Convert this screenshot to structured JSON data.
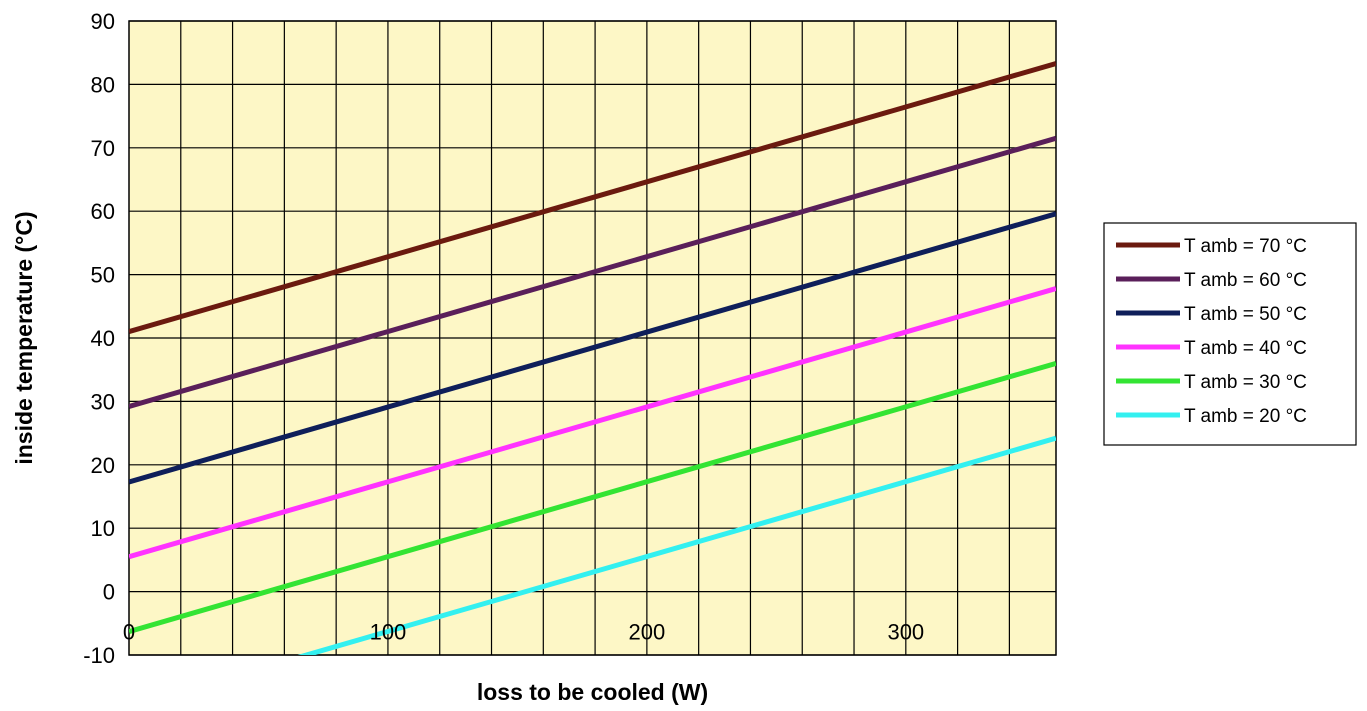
{
  "chart_data": {
    "type": "line",
    "title": "",
    "xlabel": "loss to be cooled (W)",
    "ylabel": "inside temperature (°C)",
    "xlim": [
      0,
      358
    ],
    "ylim": [
      -10,
      90
    ],
    "x_ticks": [
      0,
      100,
      200,
      300
    ],
    "y_ticks": [
      -10,
      0,
      10,
      20,
      30,
      40,
      50,
      60,
      70,
      80,
      90
    ],
    "x_grid_step": 20,
    "grid": true,
    "plot_background": "#fdf7c6",
    "legend_position": "right",
    "series": [
      {
        "name": "T amb = 70 °C",
        "color": "#6b1a0f",
        "x": [
          0,
          358
        ],
        "y": [
          41,
          83.3
        ]
      },
      {
        "name": "T amb = 60 °C",
        "color": "#5a1f5a",
        "x": [
          0,
          358
        ],
        "y": [
          29.2,
          71.5
        ]
      },
      {
        "name": "T amb = 50 °C",
        "color": "#0f1f5a",
        "x": [
          0,
          358
        ],
        "y": [
          17.3,
          59.6
        ]
      },
      {
        "name": "T amb = 40 °C",
        "color": "#ff33ff",
        "x": [
          0,
          358
        ],
        "y": [
          5.5,
          47.8
        ]
      },
      {
        "name": "T amb = 30 °C",
        "color": "#33e433",
        "x": [
          0,
          358
        ],
        "y": [
          -6.3,
          36
        ]
      },
      {
        "name": "T amb = 20 °C",
        "color": "#33f0f0",
        "x": [
          0,
          358
        ],
        "y": [
          -18.1,
          24.2
        ]
      }
    ]
  }
}
